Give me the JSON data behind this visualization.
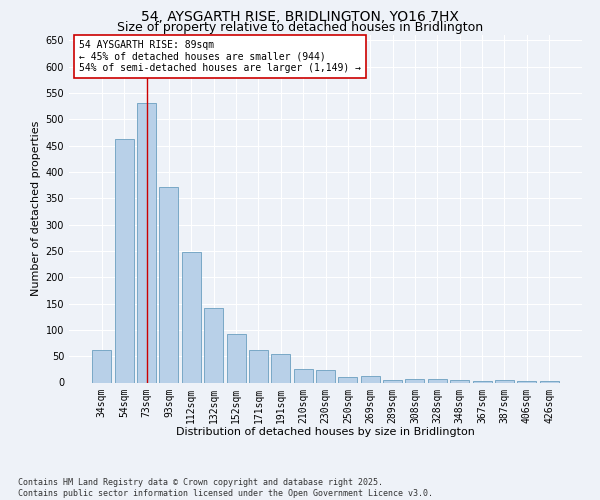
{
  "title": "54, AYSGARTH RISE, BRIDLINGTON, YO16 7HX",
  "subtitle": "Size of property relative to detached houses in Bridlington",
  "xlabel": "Distribution of detached houses by size in Bridlington",
  "ylabel": "Number of detached properties",
  "categories": [
    "34sqm",
    "54sqm",
    "73sqm",
    "93sqm",
    "112sqm",
    "132sqm",
    "152sqm",
    "171sqm",
    "191sqm",
    "210sqm",
    "230sqm",
    "250sqm",
    "269sqm",
    "289sqm",
    "308sqm",
    "328sqm",
    "348sqm",
    "367sqm",
    "387sqm",
    "406sqm",
    "426sqm"
  ],
  "values": [
    62,
    462,
    530,
    372,
    248,
    142,
    93,
    62,
    55,
    25,
    24,
    10,
    12,
    5,
    7,
    7,
    4,
    2,
    5,
    2,
    2
  ],
  "bar_color": "#b8d0e8",
  "bar_edge_color": "#6a9fc0",
  "vline_x": 2,
  "vline_color": "#cc0000",
  "annotation_text": "54 AYSGARTH RISE: 89sqm\n← 45% of detached houses are smaller (944)\n54% of semi-detached houses are larger (1,149) →",
  "annotation_box_color": "#ffffff",
  "annotation_box_edge": "#cc0000",
  "ylim": [
    0,
    660
  ],
  "yticks": [
    0,
    50,
    100,
    150,
    200,
    250,
    300,
    350,
    400,
    450,
    500,
    550,
    600,
    650
  ],
  "footnote": "Contains HM Land Registry data © Crown copyright and database right 2025.\nContains public sector information licensed under the Open Government Licence v3.0.",
  "title_fontsize": 10,
  "subtitle_fontsize": 9,
  "xlabel_fontsize": 8,
  "ylabel_fontsize": 8,
  "tick_fontsize": 7,
  "annot_fontsize": 7,
  "footnote_fontsize": 6,
  "background_color": "#eef2f8",
  "plot_bg_color": "#eef2f8",
  "grid_color": "#ffffff",
  "title_font": "DejaVu Sans",
  "body_font": "DejaVu Sans",
  "mono_font": "DejaVu Sans Mono"
}
